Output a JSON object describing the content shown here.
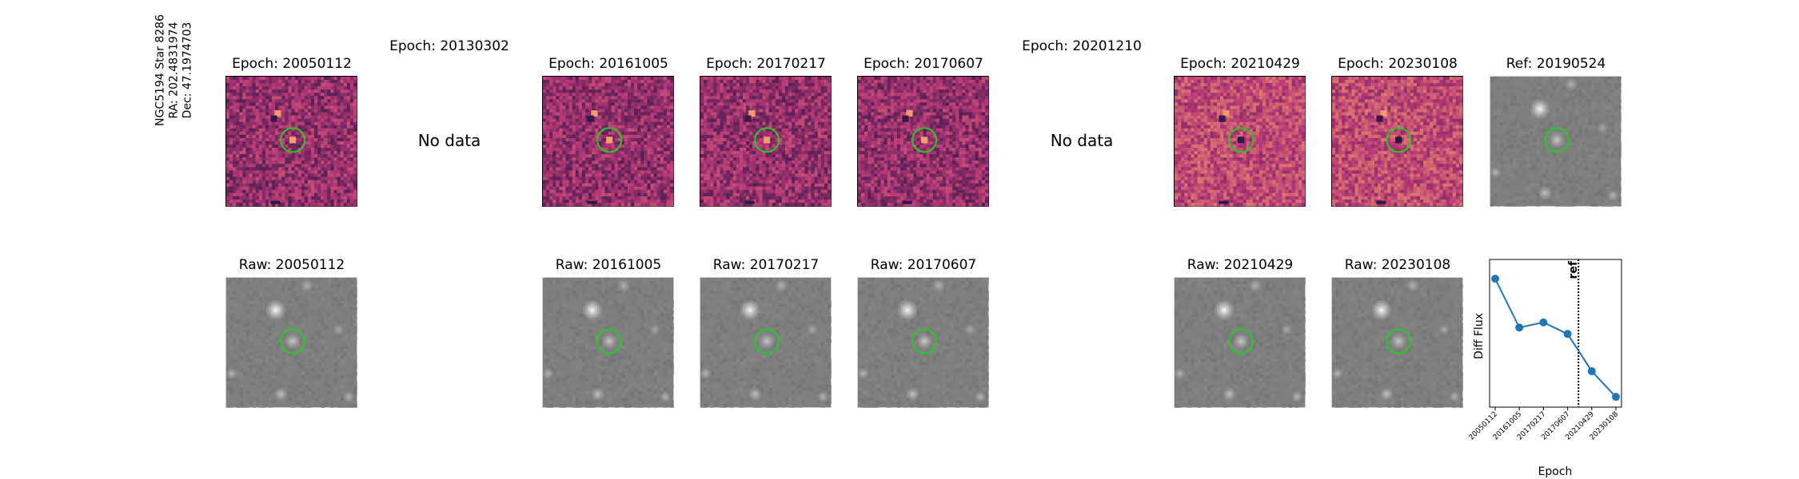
{
  "star_label": {
    "line1": "NGC5194 Star 8286",
    "line2": "RA: 202.4831974",
    "line3": "Dec: 47.1974703"
  },
  "top_titles": [
    "Epoch: 20050112",
    "Epoch: 20130302",
    "Epoch: 20161005",
    "Epoch: 20170217",
    "Epoch: 20170607",
    "Epoch: 20201210",
    "Epoch: 20210429",
    "Epoch: 20230108",
    "Ref: 20190524"
  ],
  "no_data_text": "No data",
  "bottom_titles": [
    "Raw: 20050112",
    "Raw: 20161005",
    "Raw: 20170217",
    "Raw: 20170607",
    "Raw: 20210429",
    "Raw: 20230108"
  ],
  "colors": {
    "circle": "#22cc22",
    "line": "#1f77b4",
    "diff_cmap_low": "#2b1446",
    "diff_cmap_mid": "#b83a78",
    "diff_cmap_high": "#f4a068",
    "raw_bg": "#7f7f7f"
  },
  "chart_data": {
    "type": "line",
    "x": [
      "20050112",
      "20161005",
      "20170217",
      "20170607",
      "20210429",
      "20230108"
    ],
    "values": [
      1.0,
      0.62,
      0.66,
      0.57,
      0.28,
      0.08
    ],
    "ylim": [
      0,
      1.15
    ],
    "xlabel": "Epoch",
    "ylabel": "Diff Flux",
    "ref_label": "ref",
    "ref_position_between": [
      "20170607",
      "20210429"
    ],
    "yticks_shown": false,
    "marker": "circle"
  }
}
